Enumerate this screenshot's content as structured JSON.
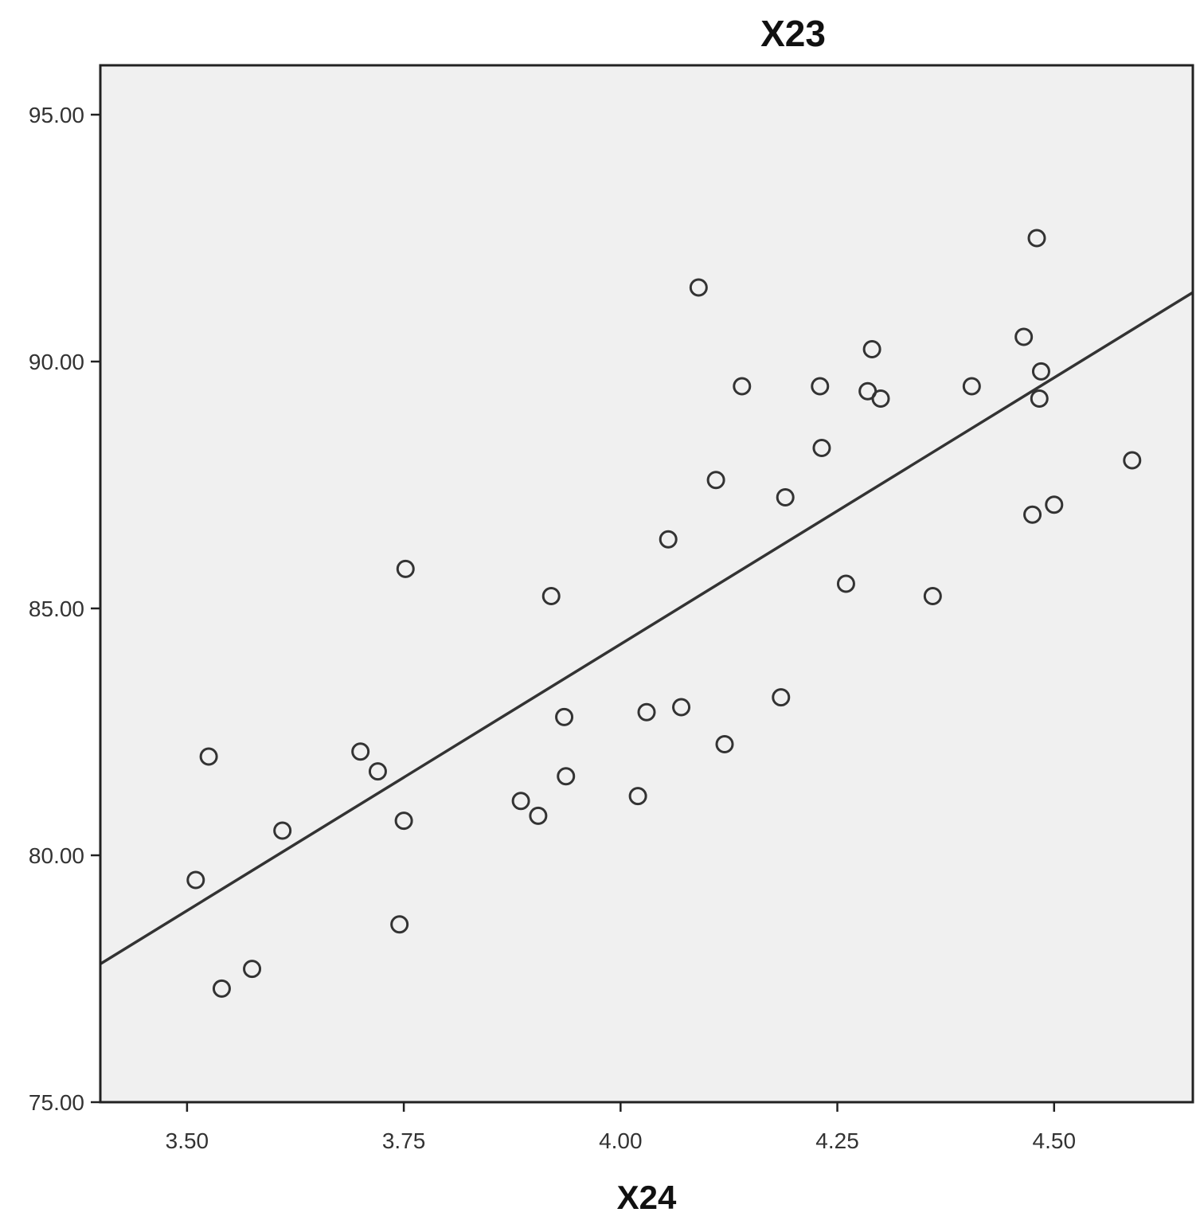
{
  "chart_data": {
    "type": "scatter",
    "title": "X23",
    "xlabel": "X24",
    "ylabel": "",
    "xlim": [
      3.4,
      4.66
    ],
    "ylim": [
      75.0,
      96.0
    ],
    "xticks": [
      3.5,
      3.75,
      4.0,
      4.25,
      4.5
    ],
    "xtick_labels": [
      "3.50",
      "3.75",
      "4.00",
      "4.25",
      "4.50"
    ],
    "yticks": [
      75.0,
      80.0,
      85.0,
      90.0,
      95.0
    ],
    "ytick_labels": [
      "75.00",
      "80.00",
      "85.00",
      "90.00",
      "95.00"
    ],
    "grid": false,
    "legend": "none",
    "background_color": "#f0f0f0",
    "marker": "hollow-circle",
    "marker_color": "#333333",
    "fit_line": {
      "type": "linear",
      "color": "#333333",
      "x": [
        3.4,
        4.66
      ],
      "y": [
        77.8,
        91.4
      ]
    },
    "series": [
      {
        "x": [
          3.51,
          3.525,
          3.54,
          3.575,
          3.61,
          3.7,
          3.72,
          3.745,
          3.75,
          3.752,
          3.885,
          3.905,
          3.92,
          3.935,
          3.937,
          4.02,
          4.03,
          4.055,
          4.07,
          4.09,
          4.11,
          4.12,
          4.14,
          4.185,
          4.19,
          4.23,
          4.232,
          4.26,
          4.285,
          4.29,
          4.3,
          4.36,
          4.405,
          4.465,
          4.475,
          4.48,
          4.483,
          4.485,
          4.5,
          4.59
        ],
        "y": [
          79.5,
          82.0,
          77.3,
          77.7,
          80.5,
          82.1,
          81.7,
          78.6,
          80.7,
          85.8,
          81.1,
          80.8,
          85.25,
          82.8,
          81.6,
          81.2,
          82.9,
          86.4,
          83.0,
          91.5,
          87.6,
          82.25,
          89.5,
          83.2,
          87.25,
          89.5,
          88.25,
          85.5,
          89.4,
          90.25,
          89.25,
          85.25,
          89.5,
          90.5,
          86.9,
          92.5,
          89.25,
          89.8,
          87.1,
          88.0
        ]
      }
    ]
  }
}
